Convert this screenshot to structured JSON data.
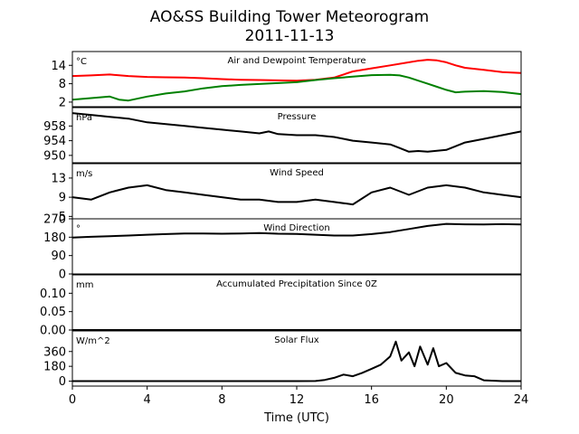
{
  "figure": {
    "title": "AO&SS Building Tower Meteorogram",
    "subtitle": "2011-11-13",
    "xlabel": "Time (UTC)"
  },
  "chart_data": {
    "type": "line",
    "title": "AO&SS Building Tower Meteorogram",
    "subtitle": "2011-11-13",
    "xlabel": "Time (UTC)",
    "x_ticks": [
      0,
      4,
      8,
      12,
      16,
      20,
      24
    ],
    "xlim": [
      0,
      24
    ],
    "grid": false,
    "panels": [
      {
        "id": "temp",
        "title": "Air and Dewpoint Temperature",
        "unit": "°C",
        "ylim": [
          0.5,
          18.5
        ],
        "yticks": [
          2,
          8,
          14
        ],
        "series": [
          {
            "color": "#ff0000",
            "x": [
              0,
              1,
              2,
              3,
              4,
              5,
              6,
              7,
              8,
              9,
              10,
              11,
              12,
              13,
              14,
              14.5,
              15,
              16,
              17,
              18,
              18.5,
              19,
              19.5,
              20,
              20.5,
              21,
              22,
              23,
              24
            ],
            "values": [
              10.5,
              10.7,
              11.0,
              10.5,
              10.2,
              10.1,
              10.0,
              9.8,
              9.5,
              9.3,
              9.2,
              9.1,
              9.0,
              9.3,
              10.0,
              11.0,
              12.0,
              13.0,
              14.0,
              15.0,
              15.5,
              15.8,
              15.6,
              15.0,
              14.0,
              13.2,
              12.5,
              11.8,
              11.5
            ]
          },
          {
            "color": "#008000",
            "x": [
              0,
              1,
              2,
              2.5,
              3,
              4,
              5,
              6,
              7,
              8,
              9,
              10,
              11,
              12,
              13,
              14,
              15,
              16,
              17,
              17.5,
              18,
              18.5,
              19,
              19.5,
              20,
              20.5,
              21,
              22,
              23,
              24
            ],
            "values": [
              2.8,
              3.3,
              3.8,
              2.8,
              2.5,
              3.8,
              4.8,
              5.5,
              6.5,
              7.2,
              7.6,
              7.9,
              8.2,
              8.5,
              9.2,
              9.8,
              10.3,
              10.8,
              10.9,
              10.7,
              10.0,
              9.0,
              8.0,
              7.0,
              6.0,
              5.2,
              5.4,
              5.6,
              5.3,
              4.6
            ]
          }
        ]
      },
      {
        "id": "pressure",
        "title": "Pressure",
        "unit": "hPa",
        "ylim": [
          948,
          963
        ],
        "yticks": [
          950,
          954,
          958
        ],
        "series": [
          {
            "color": "#000000",
            "x": [
              0,
              1,
              2,
              3,
              4,
              5,
              6,
              7,
              8,
              9,
              10,
              10.5,
              11,
              12,
              13,
              14,
              15,
              16,
              17,
              17.5,
              18,
              18.5,
              19,
              20,
              20.5,
              21,
              22,
              23,
              24
            ],
            "values": [
              961.5,
              961.0,
              960.5,
              960.0,
              959.0,
              958.5,
              958.0,
              957.5,
              957.0,
              956.5,
              956.0,
              956.5,
              955.8,
              955.5,
              955.5,
              955.0,
              954.0,
              953.5,
              953.0,
              952.0,
              951.0,
              951.2,
              951.0,
              951.5,
              952.5,
              953.5,
              954.5,
              955.5,
              956.5
            ]
          }
        ]
      },
      {
        "id": "wind_speed",
        "title": "Wind Speed",
        "unit": "m/s",
        "ylim": [
          4.5,
          16
        ],
        "yticks": [
          5,
          9,
          13
        ],
        "series": [
          {
            "color": "#000000",
            "x": [
              0,
              1,
              2,
              3,
              4,
              5,
              6,
              7,
              8,
              9,
              10,
              11,
              12,
              13,
              14,
              15,
              16,
              17,
              18,
              19,
              20,
              21,
              22,
              23,
              24
            ],
            "values": [
              9.0,
              8.5,
              10.0,
              11.0,
              11.5,
              10.5,
              10.0,
              9.5,
              9.0,
              8.5,
              8.5,
              8.0,
              8.0,
              8.5,
              8.0,
              7.5,
              10.0,
              11.0,
              9.5,
              11.0,
              11.5,
              11.0,
              10.0,
              9.5,
              9.0
            ]
          }
        ]
      },
      {
        "id": "wind_direction",
        "title": "Wind Direction",
        "unit": "°",
        "ylim": [
          0,
          270
        ],
        "yticks": [
          0,
          90,
          180,
          270
        ],
        "series": [
          {
            "color": "#000000",
            "x": [
              0,
              1,
              2,
              3,
              4,
              5,
              6,
              7,
              8,
              9,
              10,
              11,
              12,
              13,
              14,
              15,
              16,
              17,
              18,
              19,
              20,
              21,
              22,
              23,
              24
            ],
            "values": [
              178,
              182,
              185,
              188,
              192,
              195,
              198,
              198,
              197,
              198,
              200,
              197,
              196,
              192,
              188,
              188,
              195,
              205,
              220,
              235,
              245,
              243,
              242,
              244,
              242
            ]
          }
        ]
      },
      {
        "id": "precip",
        "title": "Accumulated Precipitation Since 0Z",
        "unit": "mm",
        "ylim": [
          0,
          0.15
        ],
        "yticks": [
          0.0,
          0.05,
          0.1
        ],
        "ytick_labels": [
          "0.00",
          "0.05",
          "0.10"
        ],
        "series": [
          {
            "color": "#000000",
            "x": [
              0,
              24
            ],
            "values": [
              0,
              0
            ]
          }
        ]
      },
      {
        "id": "solar",
        "title": "Solar Flux",
        "unit": "W/m^2",
        "ylim": [
          -60,
          610
        ],
        "yticks": [
          0,
          180,
          360
        ],
        "series": [
          {
            "color": "#000000",
            "x": [
              0,
              12,
              13,
              13.5,
              14,
              14.5,
              15,
              15.5,
              16,
              16.5,
              17,
              17.3,
              17.6,
              18,
              18.3,
              18.6,
              19,
              19.3,
              19.6,
              20,
              20.5,
              21,
              21.5,
              22,
              23,
              24
            ],
            "values": [
              0,
              0,
              2,
              15,
              40,
              80,
              60,
              100,
              150,
              200,
              300,
              480,
              250,
              350,
              180,
              420,
              200,
              400,
              180,
              220,
              100,
              70,
              60,
              10,
              0,
              0
            ]
          }
        ]
      }
    ]
  }
}
